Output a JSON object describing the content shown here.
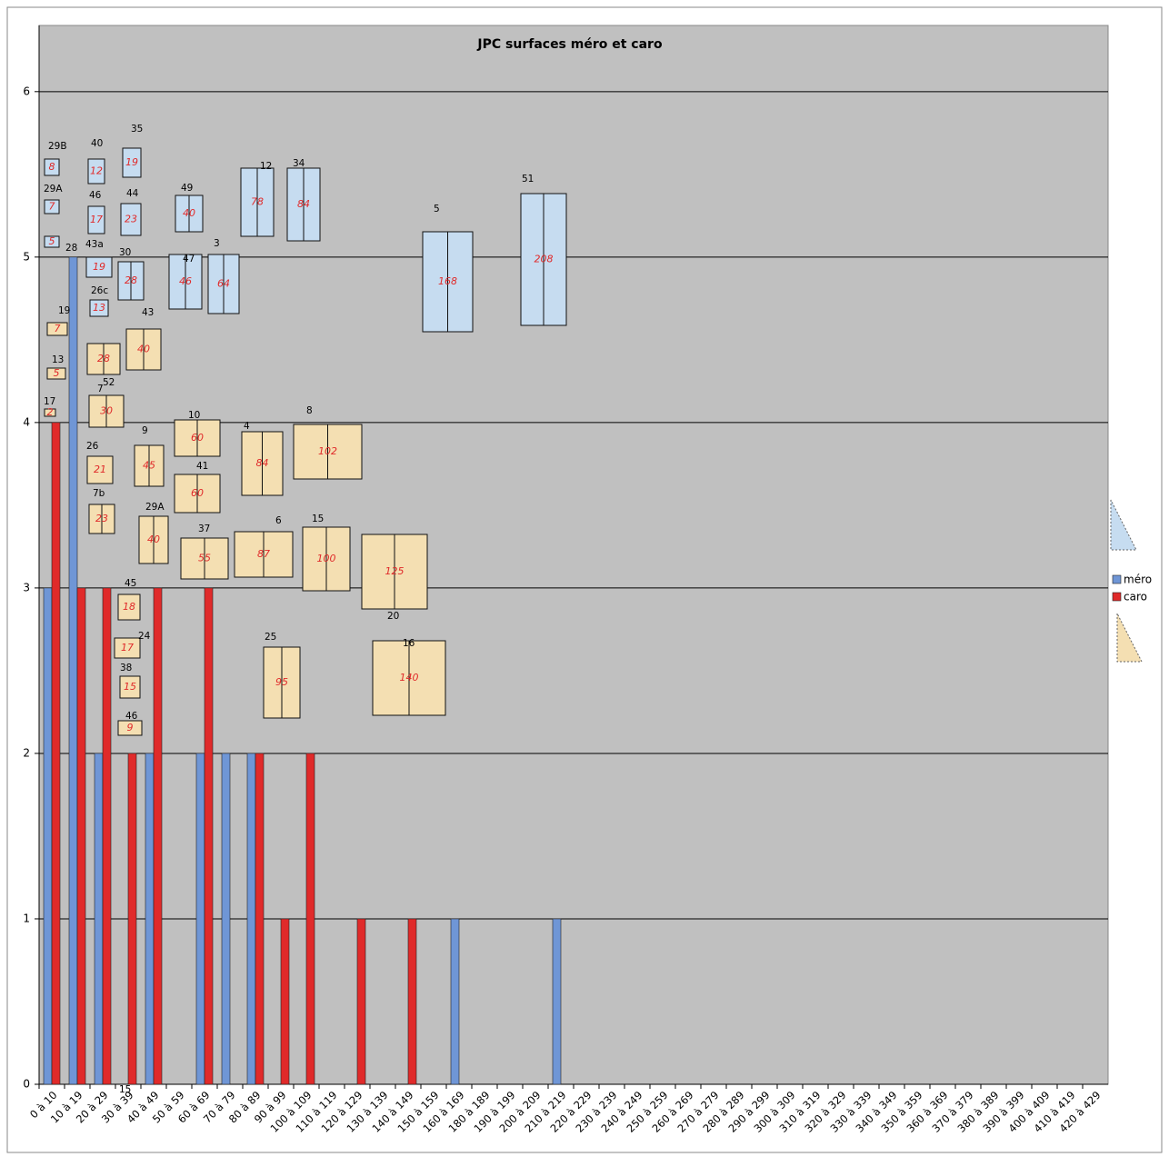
{
  "chart_data": {
    "type": "bar",
    "title": "JPC surfaces  méro et caro",
    "categories": [
      "0 à 10",
      "10 à 19",
      "20 à 29",
      "30 à 39",
      "40 à 49",
      "50 à 59",
      "60 à 69",
      "70 à 79",
      "80 à 89",
      "90 à 99",
      "100 à 109",
      "110 à 119",
      "120 à 129",
      "130 à 139",
      "140 à 149",
      "150 à 159",
      "160 à 169",
      "180 à 189",
      "190 à 199",
      "200 à 209",
      "210 à 219",
      "220 à 229",
      "230 à 239",
      "240 à 249",
      "250 à 259",
      "260 à 269",
      "270 à 279",
      "280 à 289",
      "290 à 299",
      "300 à 309",
      "310 à 319",
      "320 à 329",
      "330 à 339",
      "340 à 349",
      "350 à 359",
      "360 à 369",
      "370 à 379",
      "380 à 389",
      "390 à 399",
      "400 à 409",
      "410 à 419",
      "420 à 429"
    ],
    "series": [
      {
        "name": "méro",
        "color": "#6f96d6",
        "values": [
          3,
          5,
          2,
          0,
          2,
          0,
          2,
          2,
          2,
          0,
          0,
          0,
          0,
          0,
          0,
          0,
          1,
          0,
          0,
          0,
          1,
          0,
          0,
          0,
          0,
          0,
          0,
          0,
          0,
          0,
          0,
          0,
          0,
          0,
          0,
          0,
          0,
          0,
          0,
          0,
          0,
          0
        ]
      },
      {
        "name": "caro",
        "color": "#e02a2a",
        "values": [
          4,
          3,
          3,
          2,
          3,
          0,
          3,
          0,
          2,
          1,
          2,
          0,
          1,
          0,
          1,
          0,
          0,
          0,
          0,
          0,
          0,
          0,
          0,
          0,
          0,
          0,
          0,
          0,
          0,
          0,
          0,
          0,
          0,
          0,
          0,
          0,
          0,
          0,
          0,
          0,
          0,
          0
        ]
      }
    ],
    "ylim": [
      0,
      6.4
    ],
    "yticks": [
      0,
      1,
      2,
      3,
      4,
      5,
      6
    ],
    "grid": true,
    "mero_plots": [
      {
        "label": "29B",
        "area": "8"
      },
      {
        "label": "29A",
        "area": "7"
      },
      {
        "area": "5"
      },
      {
        "label": "40",
        "area": "12"
      },
      {
        "label": "46",
        "area": "17"
      },
      {
        "label": "43a",
        "area": "19"
      },
      {
        "label": "26c",
        "area": "13"
      },
      {
        "label": "35",
        "area": "19"
      },
      {
        "label": "44",
        "area": "23"
      },
      {
        "label": "30",
        "area": "28"
      },
      {
        "label": "49",
        "area": "40"
      },
      {
        "label": "47",
        "area": "46"
      },
      {
        "label": "3",
        "area": "64"
      },
      {
        "label": "12",
        "area": "78"
      },
      {
        "label": "34",
        "area": "84"
      },
      {
        "label": "5",
        "area": "168"
      },
      {
        "label": "51",
        "area": "208"
      }
    ],
    "caro_plots": [
      {
        "label": "19",
        "area": "7"
      },
      {
        "label": "13",
        "area": "5"
      },
      {
        "label": "17",
        "area": "2"
      },
      {
        "area": "28"
      },
      {
        "label": "43",
        "area": "40"
      },
      {
        "label": "52",
        "area": "30"
      },
      {
        "label": "26",
        "area": "21"
      },
      {
        "label": "7b",
        "area": "23"
      },
      {
        "label": "9",
        "area": "45"
      },
      {
        "label": "10",
        "area": "60"
      },
      {
        "label": "41",
        "area": "60"
      },
      {
        "label": "4",
        "area": "84"
      },
      {
        "label": "8",
        "area": "102"
      },
      {
        "label": "29A",
        "area": "40"
      },
      {
        "label": "37",
        "area": "55"
      },
      {
        "label": "6",
        "area": "87"
      },
      {
        "label": "15",
        "area": "100"
      },
      {
        "label": "20",
        "area": "125"
      },
      {
        "label": "45",
        "area": "18"
      },
      {
        "label": "24",
        "area": "17"
      },
      {
        "label": "38",
        "area": "15"
      },
      {
        "label": "46",
        "area": "9"
      },
      {
        "label": "25",
        "area": "95"
      },
      {
        "label": "16",
        "area": "140"
      }
    ],
    "other_labels": [
      "28",
      "7",
      "15"
    ]
  }
}
